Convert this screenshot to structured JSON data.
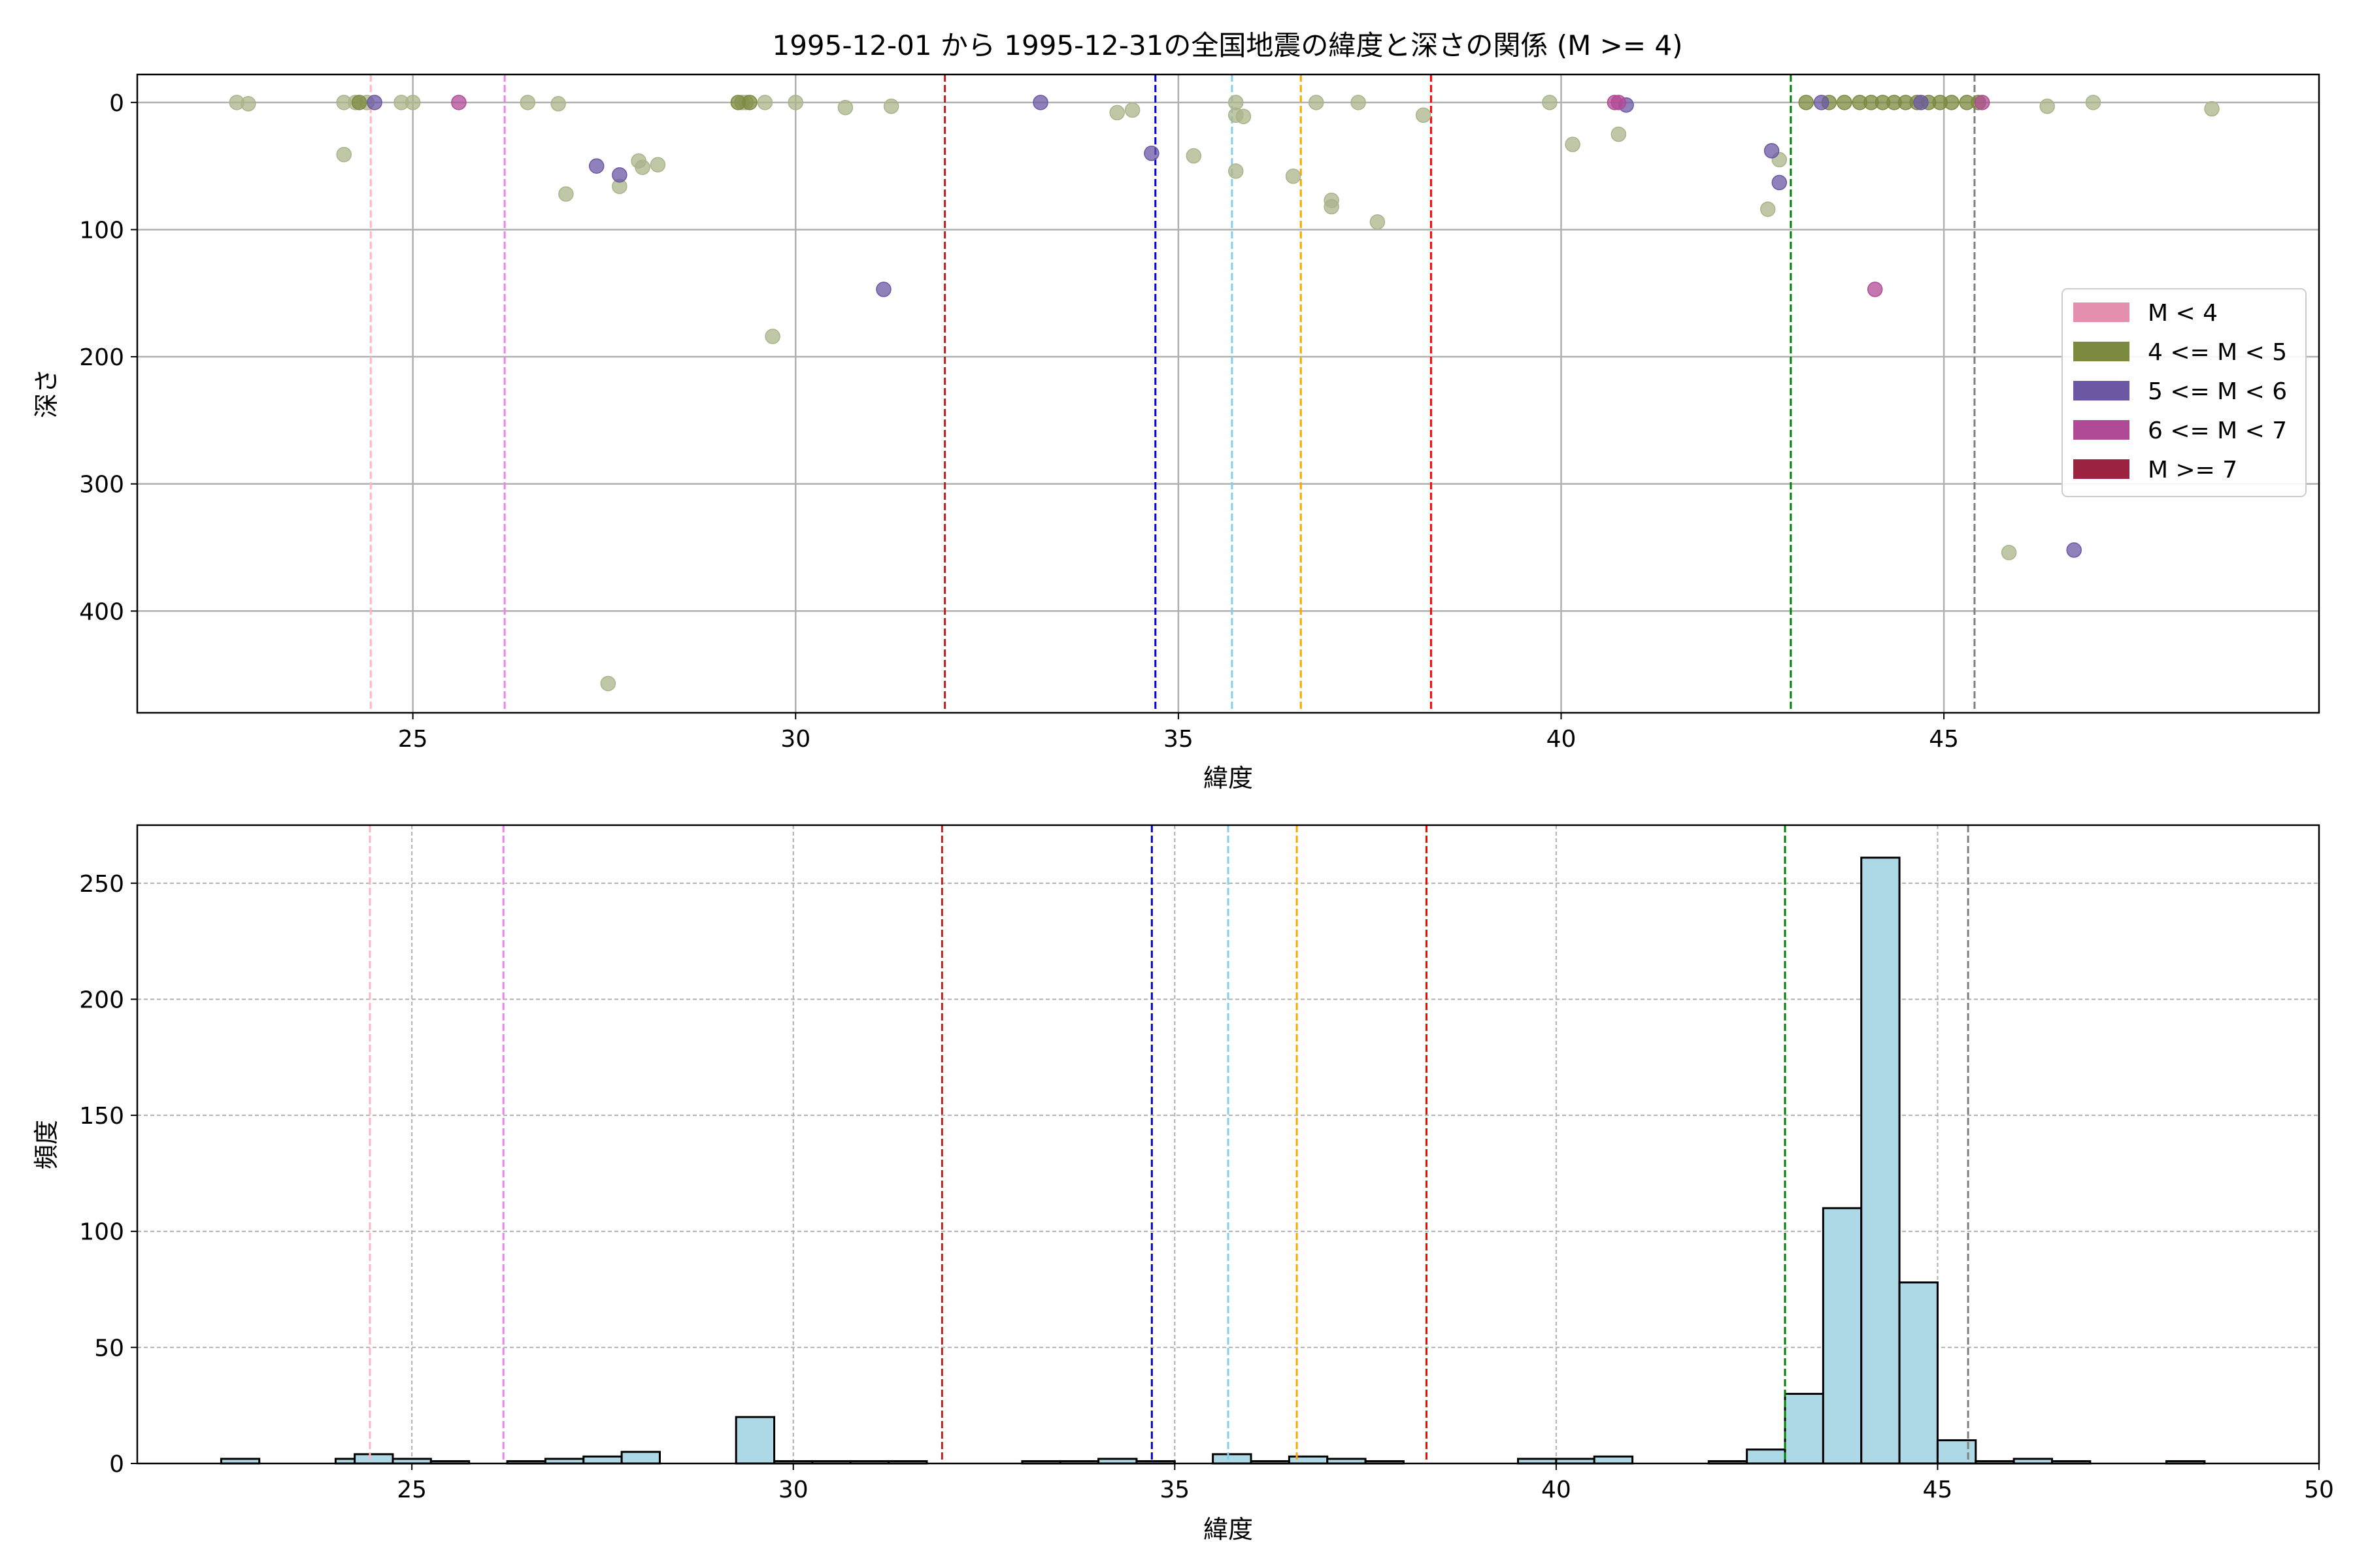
{
  "title": "1995-12-01 から 1995-12-31の全国地震の緯度と深さの関係 (M >= 4)",
  "colors": {
    "low_mag_points": "#a9b48a",
    "m4": "#7b8a3e",
    "m5": "#6b57a4",
    "m6": "#b14a96",
    "m7": "#9b2240",
    "m_lt4": "#e48fb0",
    "hist_fill": "#add8e6",
    "hist_edge": "#000000",
    "grid": "#b0b0b0"
  },
  "chart_data": [
    {
      "type": "scatter",
      "xlabel": "緯度",
      "ylabel": "深さ",
      "xlim": [
        21.4,
        49.9
      ],
      "ylim": [
        480,
        -22
      ],
      "y_inverted": true,
      "grid": true,
      "xticks": [
        25,
        30,
        35,
        40,
        45
      ],
      "yticks": [
        0,
        100,
        200,
        300,
        400
      ],
      "legend": {
        "placement": "center-right",
        "entries": [
          {
            "label": "M < 4",
            "color_key": "m_lt4"
          },
          {
            "label": "4 <= M < 5",
            "color_key": "m4"
          },
          {
            "label": "5 <= M < 6",
            "color_key": "m5"
          },
          {
            "label": "6 <= M < 7",
            "color_key": "m6"
          },
          {
            "label": "M >= 7",
            "color_key": "m7"
          }
        ]
      },
      "vlines": [
        {
          "x": 24.45,
          "color": "#ffb6c1"
        },
        {
          "x": 26.2,
          "color": "#ee82ee"
        },
        {
          "x": 31.95,
          "color": "#b22222"
        },
        {
          "x": 34.7,
          "color": "#0000cd"
        },
        {
          "x": 35.7,
          "color": "#87ceeb"
        },
        {
          "x": 36.6,
          "color": "#ffa500"
        },
        {
          "x": 38.3,
          "color": "#ff0000"
        },
        {
          "x": 43.0,
          "color": "#008000"
        },
        {
          "x": 45.4,
          "color": "#808080"
        }
      ],
      "series": [
        {
          "color_key": "low_mag_points",
          "points": [
            [
              22.7,
              0
            ],
            [
              22.85,
              1
            ],
            [
              24.1,
              0
            ],
            [
              24.25,
              0
            ],
            [
              24.4,
              0
            ],
            [
              24.85,
              0
            ],
            [
              25.0,
              0
            ],
            [
              24.1,
              41
            ],
            [
              26.5,
              0
            ],
            [
              26.9,
              1
            ],
            [
              27.0,
              72
            ],
            [
              27.7,
              66
            ],
            [
              27.95,
              46
            ],
            [
              28.0,
              51
            ],
            [
              28.2,
              49
            ],
            [
              27.55,
              457
            ],
            [
              29.3,
              0
            ],
            [
              29.35,
              0
            ],
            [
              29.6,
              0
            ],
            [
              30.0,
              0
            ],
            [
              30.65,
              4
            ],
            [
              31.25,
              3
            ],
            [
              29.7,
              184
            ],
            [
              34.2,
              8
            ],
            [
              34.4,
              6
            ],
            [
              35.2,
              42
            ],
            [
              35.75,
              0
            ],
            [
              35.75,
              10
            ],
            [
              35.85,
              11
            ],
            [
              35.75,
              54
            ],
            [
              36.5,
              58
            ],
            [
              36.8,
              0
            ],
            [
              37.0,
              77
            ],
            [
              37.0,
              82
            ],
            [
              37.35,
              0
            ],
            [
              37.6,
              94
            ],
            [
              38.2,
              10
            ],
            [
              39.85,
              0
            ],
            [
              40.15,
              33
            ],
            [
              40.75,
              25
            ],
            [
              42.7,
              84
            ],
            [
              42.85,
              45
            ],
            [
              45.85,
              354
            ],
            [
              46.35,
              3
            ],
            [
              46.95,
              0
            ],
            [
              48.5,
              5
            ]
          ]
        },
        {
          "color_key": "m4",
          "points": [
            [
              24.3,
              0
            ],
            [
              29.25,
              0
            ],
            [
              29.4,
              0
            ],
            [
              43.2,
              0
            ],
            [
              43.5,
              0
            ],
            [
              43.7,
              0
            ],
            [
              43.9,
              0
            ],
            [
              44.05,
              0
            ],
            [
              44.2,
              0
            ],
            [
              44.35,
              0
            ],
            [
              44.5,
              0
            ],
            [
              44.65,
              0
            ],
            [
              44.8,
              0
            ],
            [
              44.95,
              0
            ],
            [
              45.1,
              0
            ],
            [
              45.3,
              0
            ],
            [
              45.45,
              0
            ]
          ]
        },
        {
          "color_key": "m5",
          "points": [
            [
              24.5,
              0
            ],
            [
              27.4,
              50
            ],
            [
              27.7,
              57
            ],
            [
              31.15,
              147
            ],
            [
              33.2,
              0
            ],
            [
              34.65,
              40
            ],
            [
              40.85,
              2
            ],
            [
              42.75,
              38
            ],
            [
              42.85,
              63
            ],
            [
              44.7,
              0
            ],
            [
              46.7,
              352
            ],
            [
              43.4,
              0
            ]
          ]
        },
        {
          "color_key": "m6",
          "points": [
            [
              25.6,
              0
            ],
            [
              40.7,
              0
            ],
            [
              40.75,
              0
            ],
            [
              44.1,
              147
            ],
            [
              45.5,
              0
            ]
          ]
        }
      ]
    },
    {
      "type": "bar",
      "subtype": "histogram",
      "xlabel": "緯度",
      "ylabel": "頻度",
      "xlim": [
        21.4,
        50.0
      ],
      "ylim": [
        0,
        275
      ],
      "grid": true,
      "xticks": [
        25,
        30,
        35,
        40,
        45,
        50
      ],
      "yticks": [
        0,
        50,
        100,
        150,
        200,
        250
      ],
      "bin_width": 0.5,
      "bins": [
        [
          22.75,
          2
        ],
        [
          24.25,
          2
        ],
        [
          24.5,
          4
        ],
        [
          25.0,
          2
        ],
        [
          25.5,
          1
        ],
        [
          26.5,
          1
        ],
        [
          27.0,
          2
        ],
        [
          27.5,
          3
        ],
        [
          28.0,
          5
        ],
        [
          29.5,
          20
        ],
        [
          30.0,
          1
        ],
        [
          30.5,
          1
        ],
        [
          31.0,
          1
        ],
        [
          31.5,
          1
        ],
        [
          33.25,
          1
        ],
        [
          33.75,
          1
        ],
        [
          34.25,
          2
        ],
        [
          34.75,
          1
        ],
        [
          35.75,
          4
        ],
        [
          36.25,
          1
        ],
        [
          36.75,
          3
        ],
        [
          37.25,
          2
        ],
        [
          37.75,
          1
        ],
        [
          39.75,
          2
        ],
        [
          40.25,
          2
        ],
        [
          40.75,
          3
        ],
        [
          42.25,
          1
        ],
        [
          42.75,
          6
        ],
        [
          43.25,
          30
        ],
        [
          43.75,
          110
        ],
        [
          44.25,
          261
        ],
        [
          44.75,
          78
        ],
        [
          45.25,
          10
        ],
        [
          45.75,
          1
        ],
        [
          46.25,
          2
        ],
        [
          46.75,
          1
        ],
        [
          48.25,
          1
        ]
      ],
      "vlines": [
        {
          "x": 24.45,
          "color": "#ffb6c1"
        },
        {
          "x": 26.2,
          "color": "#ee82ee"
        },
        {
          "x": 31.95,
          "color": "#b22222"
        },
        {
          "x": 34.7,
          "color": "#0000cd"
        },
        {
          "x": 35.7,
          "color": "#87ceeb"
        },
        {
          "x": 36.6,
          "color": "#ffa500"
        },
        {
          "x": 38.3,
          "color": "#ff0000"
        },
        {
          "x": 43.0,
          "color": "#008000"
        },
        {
          "x": 45.4,
          "color": "#808080"
        }
      ]
    }
  ]
}
